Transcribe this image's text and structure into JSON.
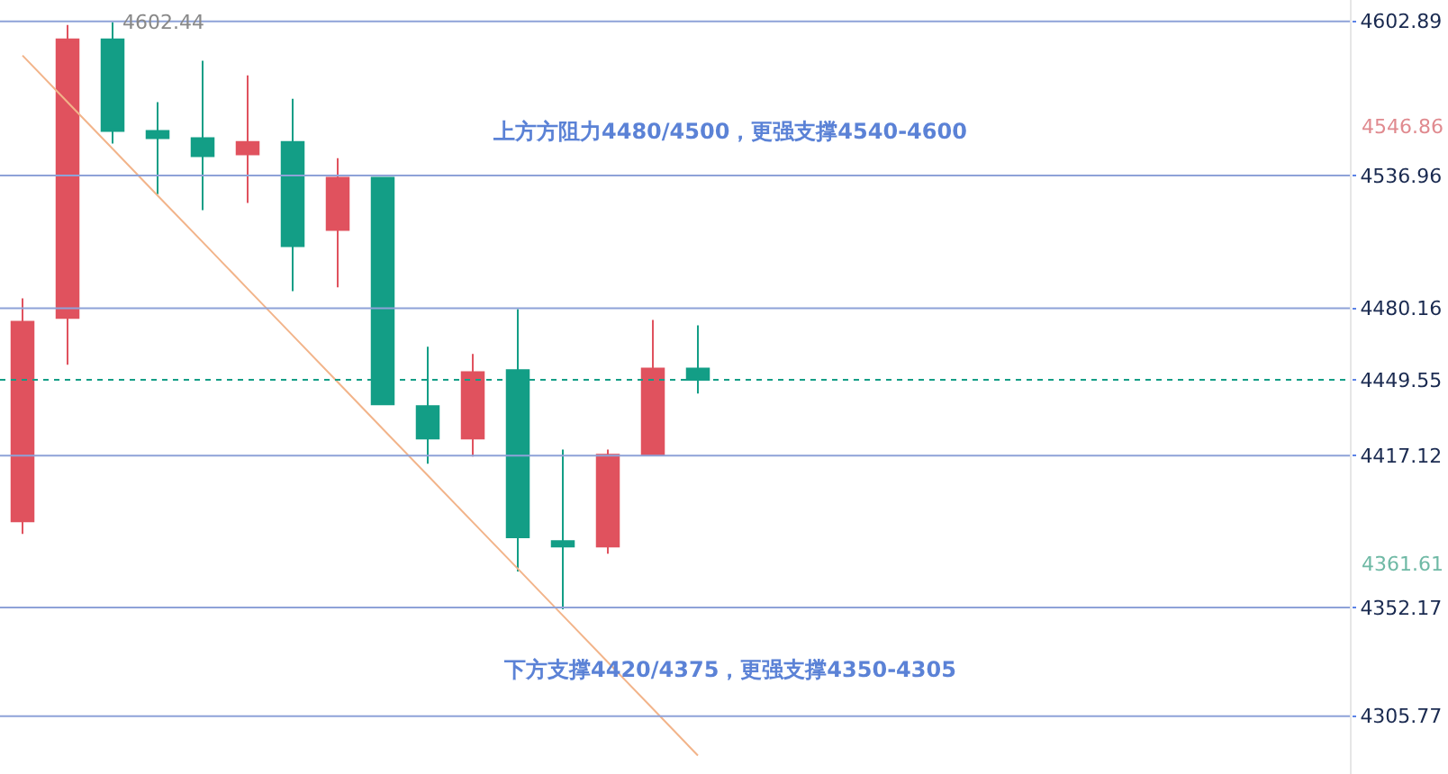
{
  "chart_data": {
    "type": "candlestick",
    "categories": [
      null,
      null,
      null,
      null,
      null,
      null,
      null,
      null,
      null,
      null,
      null,
      null,
      null,
      null,
      null,
      null,
      null,
      null,
      null,
      null,
      null,
      null,
      null,
      null,
      null,
      null,
      null,
      null,
      null,
      null
    ],
    "ohlc": [
      [
        4389.1,
        4484.4,
        4383.7,
        4474.4
      ],
      [
        4476.0,
        4601.3,
        4456.0,
        4595.2
      ],
      [
        4595.2,
        4602.44,
        4550.6,
        4556.0
      ],
      [
        4556.0,
        4568.3,
        4529.0,
        4552.9
      ],
      [
        4552.9,
        4586.0,
        4522.1,
        4545.2
      ],
      [
        4546.0,
        4579.8,
        4525.2,
        4551.3
      ],
      [
        4551.3,
        4569.8,
        4487.5,
        4506.7
      ],
      [
        4513.7,
        4544.4,
        4489.1,
        4536.0
      ],
      [
        4536.0,
        4536.0,
        4439.1,
        4439.1
      ],
      [
        4438.3,
        4463.7,
        4413.7,
        4424.5
      ],
      [
        4424.5,
        4460.6,
        4416.8,
        4452.9
      ],
      [
        4453.7,
        4479.8,
        4367.6,
        4382.2
      ],
      [
        4380.6,
        4419.8,
        4351.4,
        4378.3
      ],
      [
        4378.3,
        4419.8,
        4375.2,
        4417.5
      ],
      [
        4417.5,
        4475.2,
        4417.5,
        4454.4
      ],
      [
        4454.4,
        4472.9,
        4443.7,
        4449.55
      ],
      null,
      null,
      null,
      null,
      null,
      null,
      null,
      null,
      null,
      null,
      null,
      null,
      null,
      null
    ],
    "colors": [
      "#e0525e",
      "#e0525e",
      "#139e86",
      "#139e86",
      "#139e86",
      "#e0525e",
      "#139e86",
      "#e0525e",
      "#139e86",
      "#139e86",
      "#e0525e",
      "#139e86",
      "#139e86",
      "#e0525e",
      "#e0525e",
      "#139e86",
      null,
      null,
      null,
      null,
      null,
      null,
      null,
      null,
      null,
      null,
      null,
      null,
      null,
      null
    ],
    "series": [
      {
        "type": "line",
        "color": "#f2b48a",
        "values": [
          4588.3,
          4568.3,
          4548.4,
          4528.4,
          4508.5,
          4488.5,
          4468.6,
          4448.6,
          4428.6,
          4408.7,
          4388.7,
          4368.8,
          4348.8,
          4328.8,
          4308.9,
          4288.9,
          null,
          null,
          null,
          null,
          null,
          null,
          null,
          null,
          null,
          null,
          null,
          null,
          null,
          null
        ]
      }
    ],
    "ylim": [
      4281,
      4612
    ],
    "yticks": [
      4602.89,
      4536.96,
      4480.16,
      4449.55,
      4417.12,
      4352.17,
      4305.77
    ],
    "tick_labels": "y",
    "ref_lines": [
      {
        "axis": "y",
        "value": 4602.89,
        "color": "#8ea2d8"
      },
      {
        "axis": "y",
        "value": 4536.96,
        "color": "#8ea2d8"
      },
      {
        "axis": "y",
        "value": 4480.16,
        "color": "#8ea2d8"
      },
      {
        "axis": "y",
        "value": 4449.55,
        "color": "#139e86",
        "line_style": "dotted"
      },
      {
        "axis": "y",
        "value": 4417.12,
        "color": "#8ea2d8"
      },
      {
        "axis": "y",
        "value": 4352.17,
        "color": "#8ea2d8"
      },
      {
        "axis": "y",
        "value": 4305.77,
        "color": "#8ea2d8"
      }
    ],
    "annotations": [
      "上方方阻力4480/4500，更强支撑4540-4600",
      "下方支撑4420/4375，更强支撑4350-4305",
      {
        "text": "4602.44",
        "y": 4602.44
      },
      "4546.86",
      "4361.61"
    ]
  }
}
